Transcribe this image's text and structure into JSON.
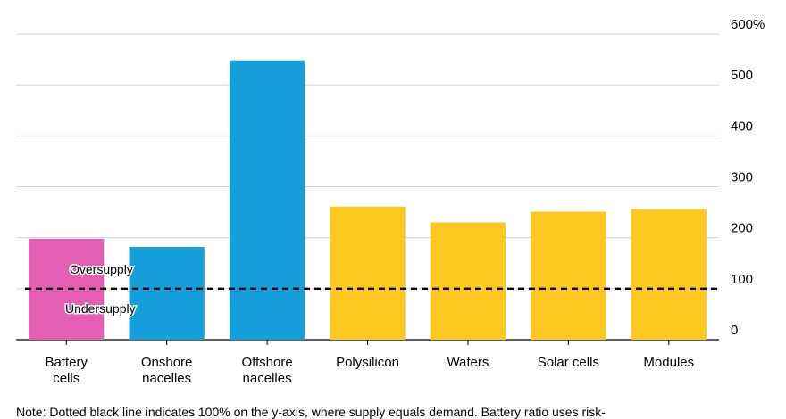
{
  "chart_data": {
    "type": "bar",
    "categories": [
      "Battery cells",
      "Onshore nacelles",
      "Offshore nacelles",
      "Polysilicon",
      "Wafers",
      "Solar cells",
      "Modules"
    ],
    "category_lines": [
      [
        "Battery",
        "cells"
      ],
      [
        "Onshore",
        "nacelles"
      ],
      [
        "Offshore",
        "nacelles"
      ],
      [
        "Polysilicon"
      ],
      [
        "Wafers"
      ],
      [
        "Solar cells"
      ],
      [
        "Modules"
      ]
    ],
    "values": [
      198,
      182,
      548,
      261,
      230,
      251,
      256
    ],
    "colors": [
      "#e35fb3",
      "#169fdb",
      "#169fdb",
      "#fdc820",
      "#fdc820",
      "#fdc820",
      "#fdc820"
    ],
    "ylim": [
      0,
      600
    ],
    "yticks": [
      0,
      100,
      200,
      300,
      400,
      500,
      600
    ],
    "ytick_labels": [
      "0",
      "100",
      "200",
      "300",
      "400",
      "500",
      "600%"
    ],
    "reference_line": {
      "value": 100,
      "style": "dashed",
      "color": "#000000"
    },
    "annotations": {
      "above": "Oversupply",
      "below": "Undersupply"
    },
    "grid": true
  },
  "note": "Note: Dotted black line indicates 100% on the y-axis, where supply equals demand. Battery ratio uses risk-"
}
